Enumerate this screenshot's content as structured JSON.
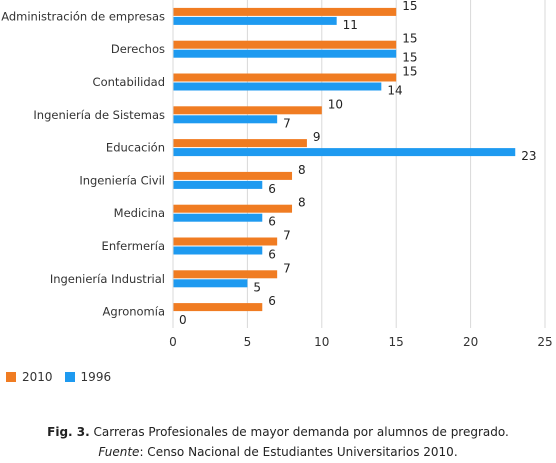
{
  "chart_data": {
    "type": "bar",
    "orientation": "horizontal",
    "categories": [
      "Administración de empresas",
      "Derechos",
      "Contabilidad",
      "Ingeniería de Sistemas",
      "Educación",
      "Ingeniería Civil",
      "Medicina",
      "Enfermería",
      "Ingeniería Industrial",
      "Agronomía"
    ],
    "series": [
      {
        "name": "2010",
        "color": "#f07c22",
        "values": [
          15,
          15,
          15,
          10,
          9,
          8,
          8,
          7,
          7,
          6
        ]
      },
      {
        "name": "1996",
        "color": "#1e9af0",
        "values": [
          11,
          15,
          14,
          7,
          23,
          6,
          6,
          6,
          5,
          0
        ]
      }
    ],
    "xlim": [
      0,
      25
    ],
    "xticks": [
      "0",
      "5",
      "10",
      "15",
      "20",
      "25"
    ],
    "grid": true,
    "legend_position": "bottom-left"
  },
  "caption": {
    "fig_label": "Fig. 3.",
    "fig_text": " Carreras Profesionales de mayor demanda por alumnos de pregrado.",
    "source_label": "Fuente",
    "source_text": ": Censo Nacional de Estudiantes Universitarios 2010."
  }
}
